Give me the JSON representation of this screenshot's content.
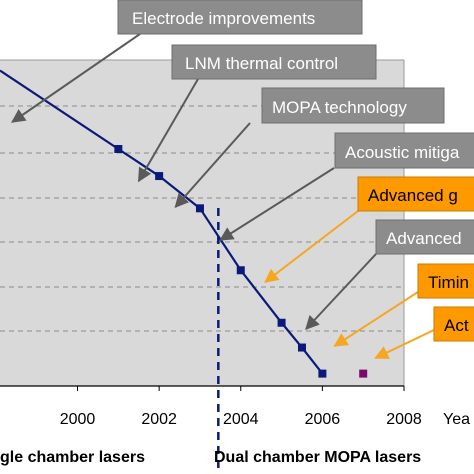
{
  "chart_data": {
    "type": "line",
    "title": "",
    "xlabel": "Yea",
    "ylabel": "",
    "xlim": [
      1998.1,
      2008
    ],
    "ylim": [
      0,
      100
    ],
    "x_ticks": [
      "2000",
      "2002",
      "2004",
      "2006",
      "2008"
    ],
    "grid": "horizontal dashed",
    "divider_x": 2003.45,
    "regions": [
      {
        "label": "gle chamber lasers"
      },
      {
        "label": "Dual chamber MOPA lasers"
      }
    ],
    "series": [
      {
        "points": [
          {
            "x": 2001,
            "y": 72.7
          },
          {
            "x": 2002,
            "y": 64.4
          },
          {
            "x": 2003,
            "y": 54.5
          },
          {
            "x": 2004,
            "y": 35.5
          },
          {
            "x": 2005,
            "y": 19.4
          },
          {
            "x": 2005.5,
            "y": 11.8
          },
          {
            "x": 2006,
            "y": 3.8
          }
        ]
      }
    ],
    "extra_point": {
      "x": 2007,
      "y": 3.8,
      "color": "#7b0a6e"
    },
    "line_color": "#0b1a7a",
    "callouts": [
      {
        "text": "Electrode improvements",
        "style": "gray",
        "target_x": 1998.4
      },
      {
        "text": "LNM thermal control",
        "style": "gray",
        "target_x": 2001.5
      },
      {
        "text": "MOPA technology",
        "style": "gray",
        "target_x": 2002.4
      },
      {
        "text": "Acoustic mitiga",
        "style": "gray",
        "target_x": 2003.5
      },
      {
        "text": "Advanced g",
        "style": "orange",
        "target_x": 2004.6
      },
      {
        "text": "Advanced",
        "style": "gray",
        "target_x": 2005.6
      },
      {
        "text": "Timin",
        "style": "orange",
        "target_x": 2006.3
      },
      {
        "text": "Act",
        "style": "orange",
        "target_x": 2007.3
      }
    ],
    "colors": {
      "plot_bg": "#d9d9d9",
      "gray_box": "#8c8c8c",
      "gray_arrow": "#5a5a5a",
      "orange_box": "#ff9900",
      "orange_arrow": "#f5a623"
    }
  }
}
